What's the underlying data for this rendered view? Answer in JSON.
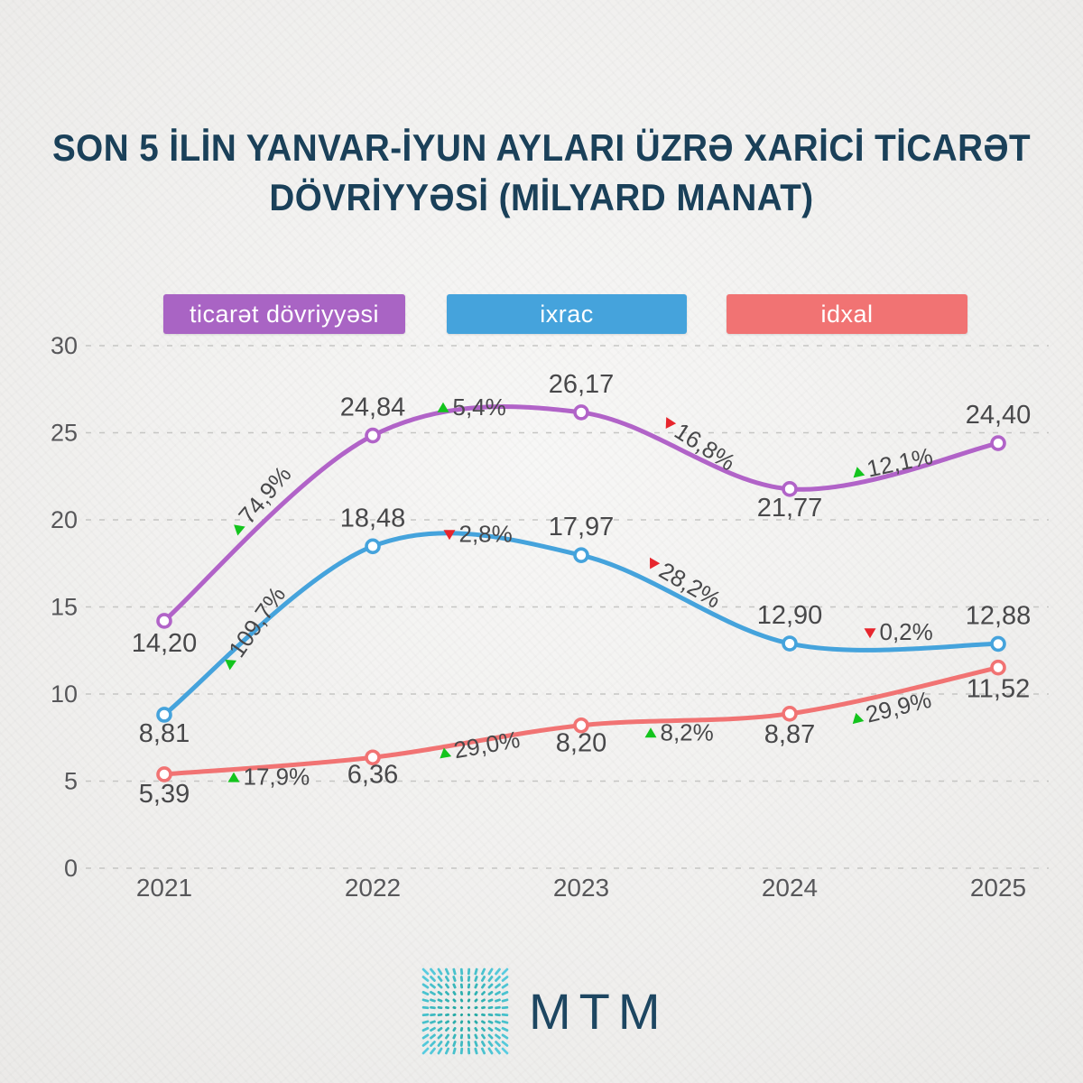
{
  "title_lines": [
    "SON 5 İLİN YANVAR-İYUN AYLARI ÜZRƏ XARİCİ TİCARƏT",
    "DÖVRİYYƏSİ (MİLYARD MANAT)"
  ],
  "legend": [
    {
      "label": "ticarət dövriyyəsi",
      "color": "#a964c4"
    },
    {
      "label": "ixrac",
      "color": "#45a3dc"
    },
    {
      "label": "idxal",
      "color": "#f17373"
    }
  ],
  "colors": {
    "up_triangle": "#13c41d",
    "down_triangle": "#e7252d",
    "grid": "#c6c6c4",
    "axis_text": "#57575a",
    "label_text": "#48484a",
    "title_text": "#1a4059",
    "background": "#f0efed",
    "logo_teal_inner": "#18a096",
    "logo_teal_outer": "#5acde1"
  },
  "chart_data": {
    "type": "line",
    "title": "SON 5 İLİN YANVAR-İYUN AYLARI ÜZRƏ XARİCİ TİCARƏT DÖVRİYYƏSİ (MİLYARD MANAT)",
    "x": [
      2021,
      2022,
      2023,
      2024,
      2025
    ],
    "x_labels": [
      "2021",
      "2022",
      "2023",
      "2024",
      "2025"
    ],
    "ylim": [
      0,
      30
    ],
    "yticks": [
      0,
      5,
      10,
      15,
      20,
      25,
      30
    ],
    "grid": "horizontal-dashed",
    "legend_position": "top",
    "series": [
      {
        "name": "ticarət dövriyyəsi",
        "color": "#b163c8",
        "values": [
          14.2,
          24.84,
          26.17,
          21.77,
          24.4
        ],
        "labels": [
          "14,20",
          "24,84",
          "26,17",
          "21,77",
          "24,40"
        ],
        "label_dy": [
          34,
          -22,
          -22,
          30,
          -22
        ],
        "changes": [
          {
            "text": "74,9%",
            "value": 74.9,
            "dir": "up",
            "angle": -50,
            "dx": -38,
            "dy": 5
          },
          {
            "text": "5,4%",
            "value": 5.4,
            "dir": "up",
            "angle": 0,
            "dx": -44,
            "dy": -18
          },
          {
            "text": "16,8%",
            "value": 16.8,
            "dir": "down",
            "angle": 33,
            "dx": -24,
            "dy": -33
          },
          {
            "text": "12,1%",
            "value": 12.1,
            "dir": "up",
            "angle": -12,
            "dx": -46,
            "dy": 8
          }
        ]
      },
      {
        "name": "ixrac",
        "color": "#45a3dc",
        "values": [
          8.81,
          18.48,
          17.97,
          12.9,
          12.88
        ],
        "labels": [
          "8,81",
          "18,48",
          "17,97",
          "12,90",
          "12,88"
        ],
        "label_dy": [
          30,
          -22,
          -22,
          -22,
          -22
        ],
        "changes": [
          {
            "text": "109,7%",
            "value": 109.7,
            "dir": "up",
            "angle": -55,
            "dx": -47,
            "dy": 41
          },
          {
            "text": "2,8%",
            "value": 2.8,
            "dir": "down",
            "angle": 0,
            "dx": -37,
            "dy": -18
          },
          {
            "text": "28,2%",
            "value": 28.2,
            "dir": "down",
            "angle": 30,
            "dx": -42,
            "dy": -42
          },
          {
            "text": "0,2%",
            "value": 0.2,
            "dir": "down",
            "angle": 0,
            "dx": -33,
            "dy": -12
          }
        ]
      },
      {
        "name": "idxal",
        "color": "#f17373",
        "values": [
          5.39,
          6.36,
          8.2,
          8.87,
          11.52
        ],
        "labels": [
          "5,39",
          "6,36",
          "8,20",
          "8,87",
          "11,52"
        ],
        "label_dy": [
          31,
          28,
          29,
          32,
          33
        ],
        "changes": [
          {
            "text": "17,9%",
            "value": 17.9,
            "dir": "up",
            "angle": 0,
            "dx": -45,
            "dy": 13
          },
          {
            "text": "29,0%",
            "value": 29.0,
            "dir": "up",
            "angle": -10,
            "dx": -42,
            "dy": 14
          },
          {
            "text": "8,2%",
            "value": 8.2,
            "dir": "up",
            "angle": 0,
            "dx": -45,
            "dy": 15
          },
          {
            "text": "29,9%",
            "value": 29.9,
            "dir": "up",
            "angle": -14,
            "dx": -47,
            "dy": 32
          }
        ]
      }
    ]
  },
  "logo": {
    "text": "MTM"
  }
}
